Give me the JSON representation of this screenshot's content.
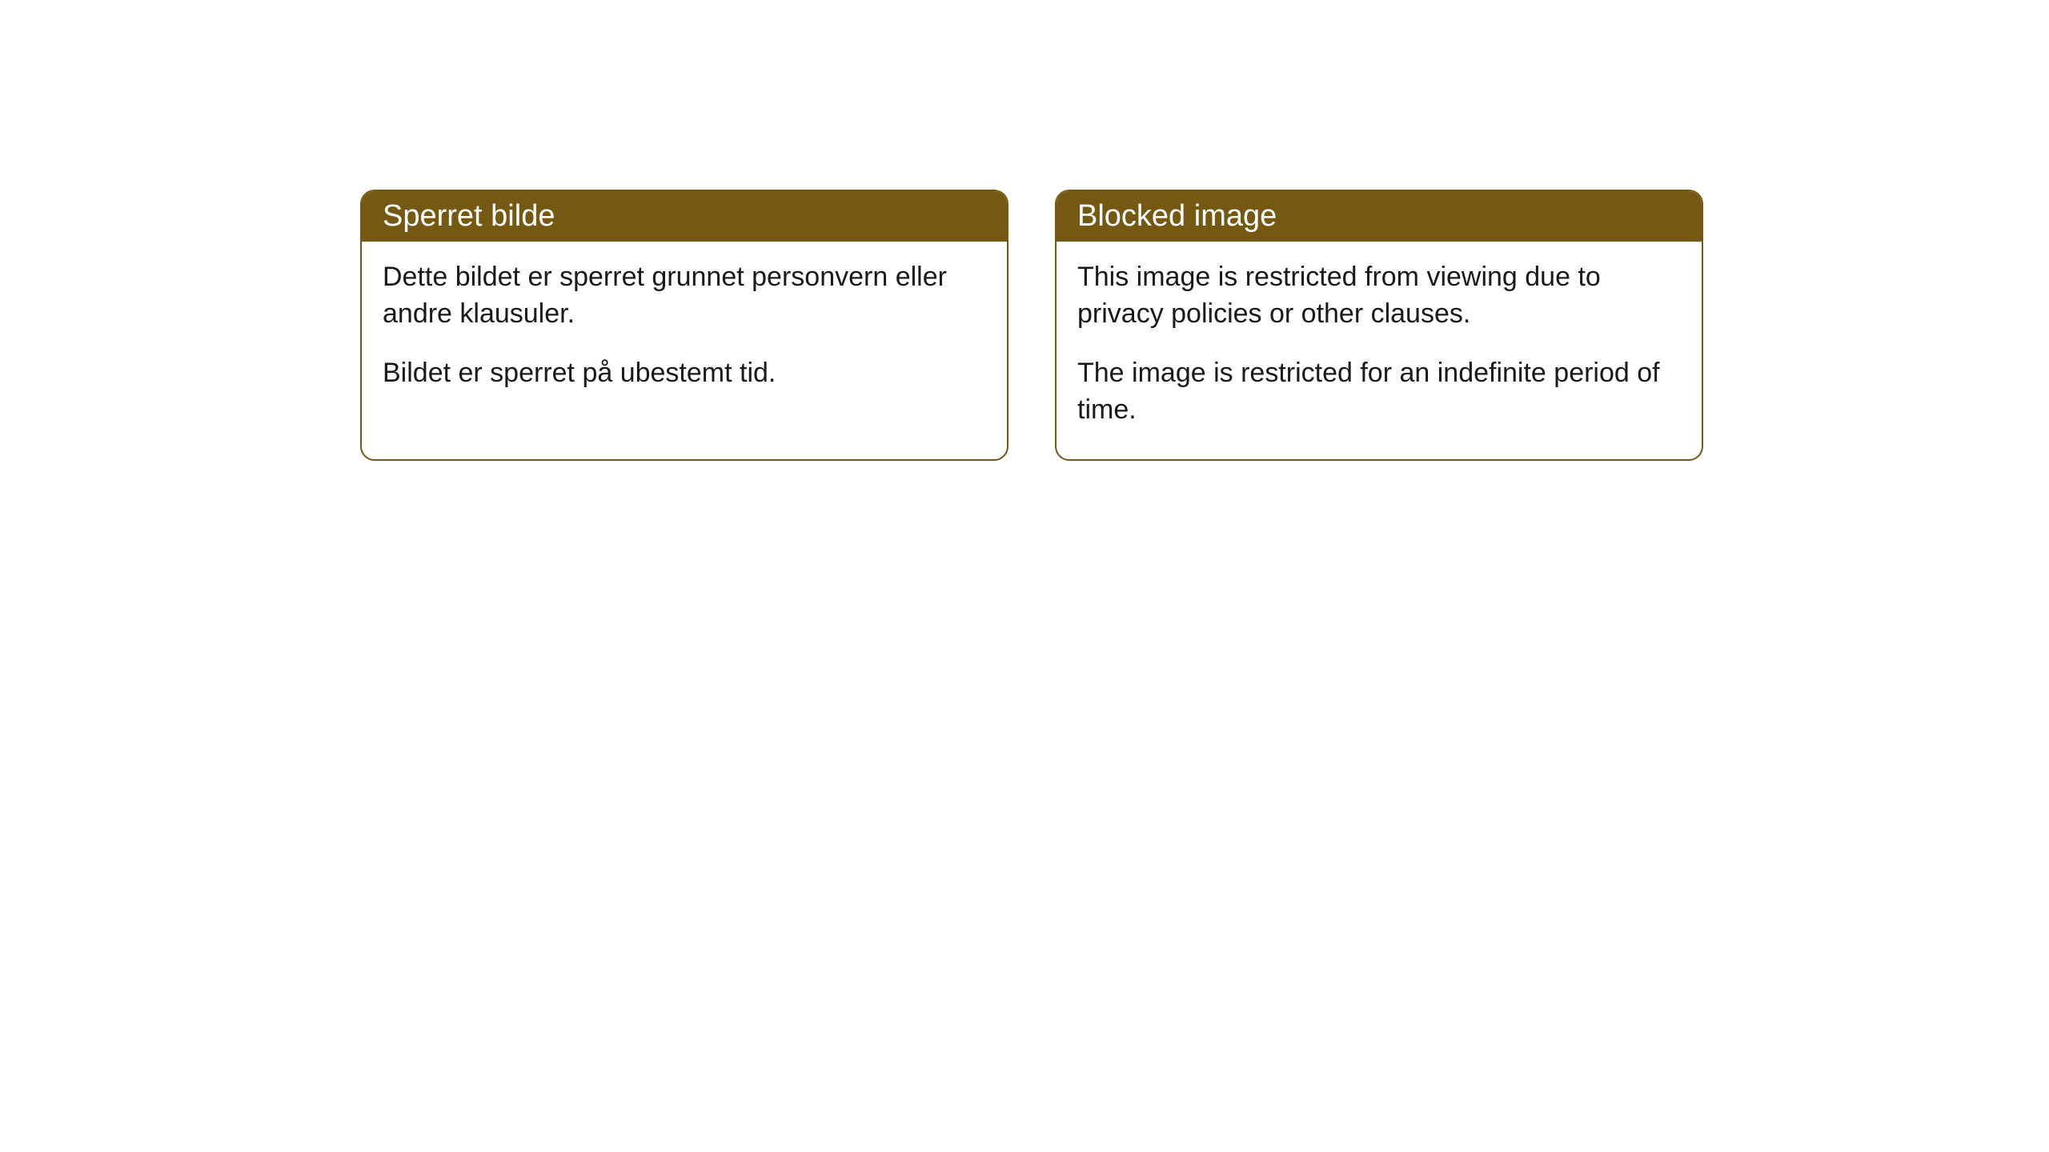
{
  "cards": [
    {
      "title": "Sperret bilde",
      "paragraph1": "Dette bildet er sperret grunnet personvern eller andre klausuler.",
      "paragraph2": "Bildet er sperret på ubestemt tid."
    },
    {
      "title": "Blocked image",
      "paragraph1": "This image is restricted from viewing due to privacy policies or other clauses.",
      "paragraph2": "The image is restricted for an indefinite period of time."
    }
  ],
  "style": {
    "header_background": "#755912",
    "header_text_color": "#ffffff",
    "border_color": "#755912",
    "body_text_color": "#1a1a1a",
    "card_background": "#ffffff",
    "page_background": "#ffffff",
    "border_radius": 18,
    "title_fontsize": 38,
    "body_fontsize": 34
  }
}
